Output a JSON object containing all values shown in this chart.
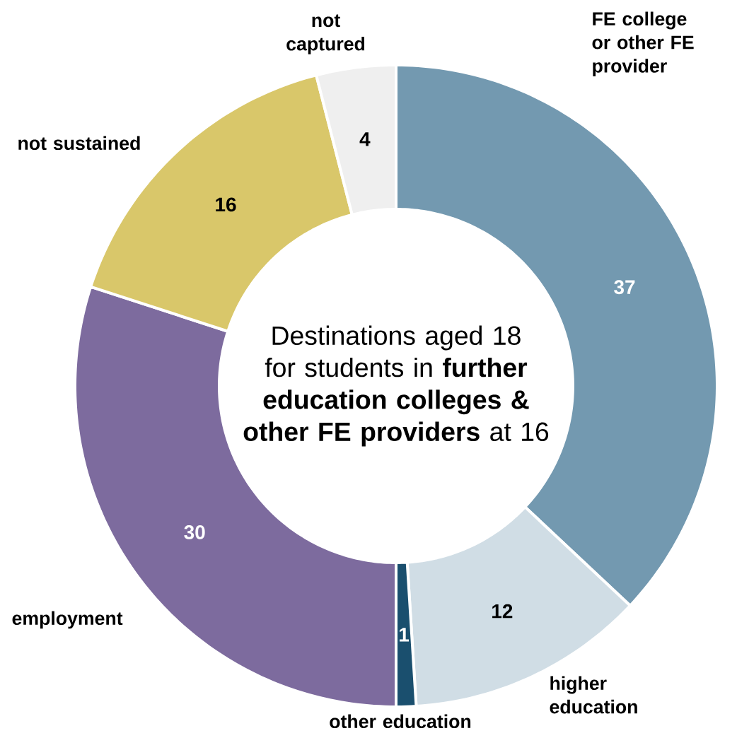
{
  "chart_data": {
    "type": "donut",
    "title": "Destinations aged 18 for students in **further education colleges & other FE providers** at 16",
    "categories": [
      "FE college or other FE provider",
      "higher education",
      "other education",
      "employment",
      "not sustained",
      "not captured"
    ],
    "values": [
      37,
      12,
      1,
      30,
      16,
      4
    ],
    "colors": [
      "#7399b0",
      "#d0dde5",
      "#1a4f6e",
      "#7d6b9e",
      "#d9c76a",
      "#efefef"
    ],
    "data_labels": true
  }
}
